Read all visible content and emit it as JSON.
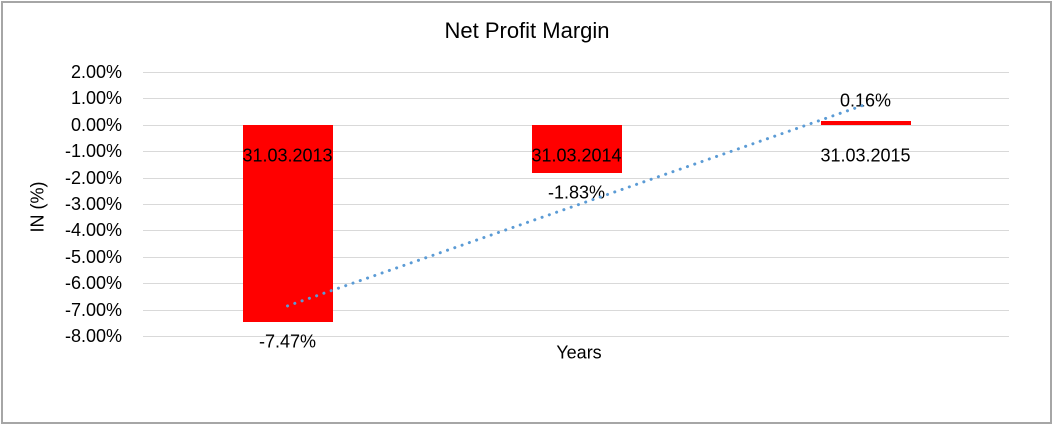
{
  "chart_data": {
    "type": "bar",
    "title": "Net Profit Margin",
    "xlabel": "Years",
    "ylabel": "IN (%)",
    "categories": [
      "31.03.2013",
      "31.03.2014",
      "31.03.2015"
    ],
    "values": [
      -7.47,
      -1.83,
      0.16
    ],
    "value_labels": [
      "-7.47%",
      "-1.83%",
      "0.16%"
    ],
    "ylim": [
      -8,
      2
    ],
    "ytick_values": [
      2,
      1,
      0,
      -1,
      -2,
      -3,
      -4,
      -5,
      -6,
      -7,
      -8
    ],
    "ytick_labels": [
      "2.00%",
      "1.00%",
      "0.00%",
      "-1.00%",
      "-2.00%",
      "-3.00%",
      "-4.00%",
      "-5.00%",
      "-6.00%",
      "-7.00%",
      "-8.00%"
    ],
    "grid": true,
    "legend": "none",
    "bar_color": "#ff0000",
    "gridline_color": "#d9d9d9",
    "trendline": {
      "type": "linear",
      "style": "dotted",
      "color": "#5b9bd5",
      "fitted_values": [
        -6.86,
        -3.05,
        0.77
      ]
    }
  }
}
